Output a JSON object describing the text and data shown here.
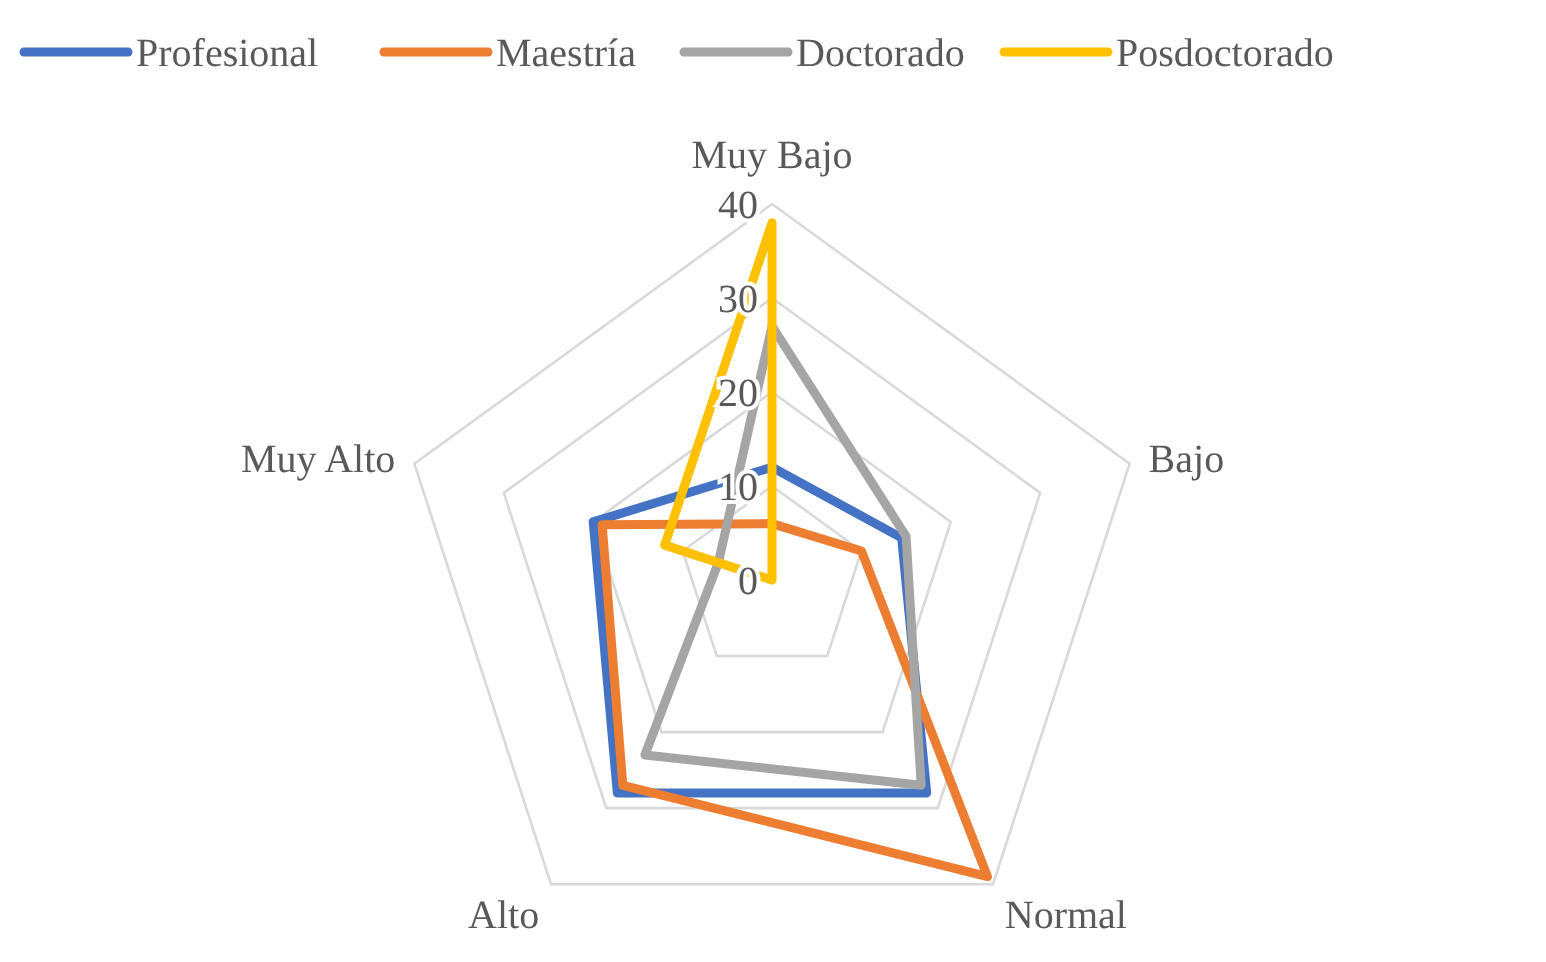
{
  "chart_data": {
    "type": "radar",
    "categories": [
      "Muy Bajo",
      "Bajo",
      "Normal",
      "Alto",
      "Muy Alto"
    ],
    "ylim": [
      0,
      40
    ],
    "yticks": [
      0,
      10,
      20,
      30,
      40
    ],
    "grid": true,
    "legend": "top",
    "marker": "none",
    "series": [
      {
        "name": "Profesional",
        "color": "#4472c4",
        "values": [
          12,
          14.5,
          28,
          28,
          20
        ]
      },
      {
        "name": "Maestría",
        "color": "#ed7d31",
        "values": [
          6,
          10,
          39,
          27,
          19
        ]
      },
      {
        "name": "Doctorado",
        "color": "#a5a5a5",
        "values": [
          27,
          15,
          27,
          23,
          6
        ]
      },
      {
        "name": "Posdoctorado",
        "color": "#ffc000",
        "values": [
          38,
          0,
          0,
          0,
          12
        ]
      }
    ]
  }
}
